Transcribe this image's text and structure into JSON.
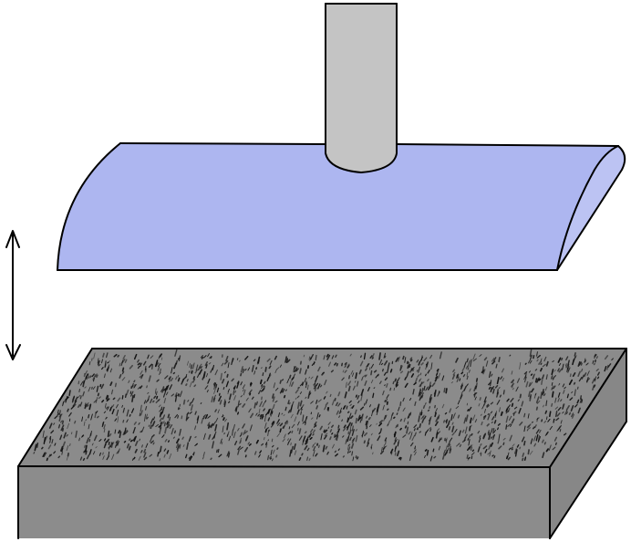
{
  "diagram": {
    "colors": {
      "background": "#ffffff",
      "outline": "#000000",
      "shaft": "#c4c4c4",
      "platen_face": "#adb6f0",
      "platen_side": "#bcc3f3",
      "block_top": "#8b8b8b",
      "block_front": "#8c8c8c",
      "block_side": "#878787",
      "texture_marks": "#111111"
    },
    "icons": {
      "motion_indicator": "double-headed-vertical-arrow"
    }
  }
}
